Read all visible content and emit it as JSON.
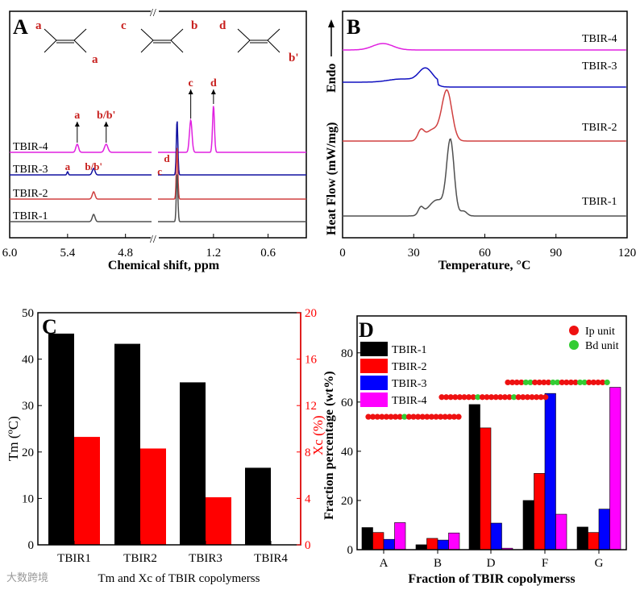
{
  "chart_data": [
    {
      "panel": "A",
      "type": "line",
      "xlabel": "Chemical shift, ppm",
      "xlim_segments": [
        [
          6.0,
          4.53
        ],
        [
          1.81,
          0.18
        ]
      ],
      "xticks": [
        "6.0",
        "5.4",
        "4.8",
        "1.2",
        "0.6"
      ],
      "xtick_values": [
        6.0,
        5.4,
        4.8,
        1.2,
        0.6
      ],
      "series": [
        {
          "name": "TBIR-4",
          "color": "#e020e0",
          "offset": 100,
          "peaks": [
            [
              5.3,
              10,
              0.02
            ],
            [
              5.0,
              10,
              0.025
            ],
            [
              1.45,
              40,
              0.02
            ],
            [
              1.2,
              58,
              0.015
            ]
          ],
          "labels": [
            {
              "text": "a",
              "ppm": 5.3
            },
            {
              "text": "b/b'",
              "ppm": 5.0
            },
            {
              "text": "c",
              "ppm": 1.45
            },
            {
              "text": "d",
              "ppm": 1.2
            }
          ]
        },
        {
          "name": "TBIR-3",
          "color": "#1010a0",
          "offset": 72,
          "peaks": [
            [
              5.4,
              4,
              0.01
            ],
            [
              5.13,
              8,
              0.02
            ],
            [
              1.6,
              68,
              0.012
            ]
          ],
          "labels": [
            {
              "text": "a",
              "ppm": 5.4
            },
            {
              "text": "b/b'",
              "ppm": 5.13
            },
            {
              "text": "c",
              "ppm": 1.72
            },
            {
              "text": "d",
              "ppm": 1.66
            }
          ]
        },
        {
          "name": "TBIR-2",
          "color": "#d04040",
          "offset": 42,
          "peaks": [
            [
              5.13,
              9,
              0.02
            ],
            [
              1.6,
              65,
              0.012
            ]
          ],
          "labels": []
        },
        {
          "name": "TBIR-1",
          "color": "#505050",
          "offset": 14,
          "peaks": [
            [
              5.13,
              9,
              0.02
            ],
            [
              1.6,
              60,
              0.012
            ]
          ],
          "labels": []
        }
      ],
      "structure_labels": [
        "a",
        "a",
        "c",
        "b",
        "d",
        "b'"
      ]
    },
    {
      "panel": "B",
      "type": "line",
      "xlabel": "Temperature, °C",
      "ylabel": "Heat Flow (mW/mg)",
      "endo_label": "Endo",
      "xlim": [
        0,
        120
      ],
      "xticks": [
        0,
        30,
        60,
        90,
        120
      ],
      "series": [
        {
          "name": "TBIR-4",
          "color": "#e020e0",
          "offset": 233,
          "peaks": [
            [
              17,
              8,
              6
            ]
          ]
        },
        {
          "name": "TBIR-3",
          "color": "#1010c0",
          "offset": 193,
          "peaks": [
            [
              35,
              17,
              4
            ],
            [
              25,
              4,
              8
            ]
          ]
        },
        {
          "name": "TBIR-2",
          "color": "#d04040",
          "offset": 120,
          "peaks": [
            [
              33,
              12,
              1.8
            ],
            [
              44,
              62,
              3
            ],
            [
              38,
              14,
              4
            ]
          ]
        },
        {
          "name": "TBIR-1",
          "color": "#505050",
          "offset": 27,
          "peaks": [
            [
              33,
              9,
              1.5
            ],
            [
              45.5,
              90,
              2.2
            ],
            [
              40,
              20,
              5
            ],
            [
              51,
              6,
              2
            ]
          ]
        }
      ]
    },
    {
      "panel": "C",
      "type": "bar",
      "categories": [
        "TBIR1",
        "TBIR2",
        "TBIR3",
        "TBIR4"
      ],
      "series": [
        {
          "name": "Tm",
          "axis": "left",
          "color": "#000000",
          "values": [
            45.5,
            43.3,
            35.0,
            16.6
          ]
        },
        {
          "name": "Xc",
          "axis": "right",
          "color": "#ff0000",
          "values": [
            9.3,
            8.3,
            4.1,
            0
          ]
        }
      ],
      "ylabel": "Tm (ºC)",
      "y2label": "Xc (%)",
      "xlabel": "Tm and Xc of TBIR copolymerss",
      "ylim": [
        0,
        50
      ],
      "y2lim": [
        0,
        20
      ],
      "yticks": [
        0,
        10,
        20,
        30,
        40,
        50
      ],
      "y2ticks": [
        0,
        4,
        8,
        12,
        16,
        20
      ]
    },
    {
      "panel": "D",
      "type": "bar",
      "categories": [
        "A",
        "B",
        "D",
        "F",
        "G"
      ],
      "series": [
        {
          "name": "TBIR-1",
          "color": "#000000",
          "values": [
            9,
            2,
            59,
            20,
            9.2
          ]
        },
        {
          "name": "TBIR-2",
          "color": "#ff0000",
          "values": [
            7,
            4.6,
            49.5,
            31,
            7
          ]
        },
        {
          "name": "TBIR-3",
          "color": "#0000ff",
          "values": [
            4.2,
            3.9,
            10.8,
            63.5,
            16.5
          ]
        },
        {
          "name": "TBIR-4",
          "color": "#ff00ff",
          "values": [
            11,
            6.8,
            0.6,
            14.4,
            66
          ]
        }
      ],
      "ylabel": "Fraction percentage (wt%)",
      "xlabel": "Fraction of TBIR copolymerss",
      "ylim": [
        0,
        95
      ],
      "yticks": [
        0,
        20,
        40,
        60,
        80
      ],
      "legend": "top-left",
      "unit_legend": [
        {
          "label": "Ip unit",
          "color": "#ee1111"
        },
        {
          "label": "Bd unit",
          "color": "#33cc33"
        }
      ],
      "chains": [
        {
          "pattern": "IIIIIIIIBIIIIIIIIIIII",
          "level": 54
        },
        {
          "pattern": "IIIIIIIIBIIIIIIIBIIIIIII",
          "level": 62
        },
        {
          "pattern": "IIIIBBIIIIBBIIIIBBIIIIB",
          "level": 68
        }
      ]
    }
  ],
  "watermark": "大数跨境"
}
